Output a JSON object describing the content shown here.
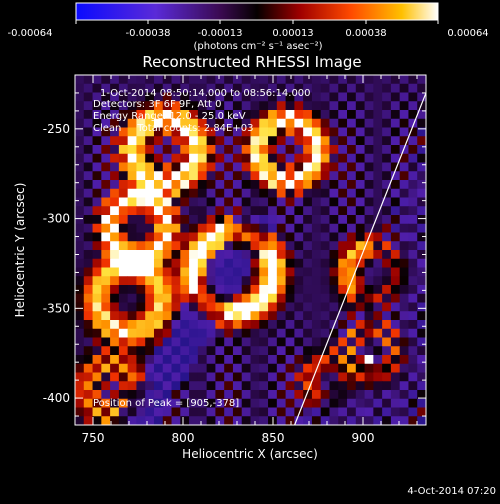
{
  "colorbar": {
    "ticks": [
      "-0.00064",
      "-0.00038",
      "-0.00013",
      "0.00013",
      "0.00038",
      "0.00064"
    ],
    "unit_label": "(photons cm⁻² s⁻¹ asec⁻²)",
    "range": [
      -0.00064,
      0.00064
    ]
  },
  "chart_data": {
    "type": "heatmap",
    "title": "Reconstructed RHESSI Image",
    "xlabel": "Heliocentric X (arcsec)",
    "ylabel": "Heliocentric Y (arcsec)",
    "xlim": [
      740,
      935
    ],
    "ylim": [
      -415,
      -220
    ],
    "xticks": [
      750,
      800,
      850,
      900
    ],
    "yticks": [
      -250,
      -300,
      -350,
      -400
    ],
    "colormap": "blue-purple-black-red-orange-yellow-white",
    "peak_position": [
      905,
      -378
    ],
    "limb_line": [
      [
        862,
        -415
      ],
      [
        935,
        -230
      ]
    ],
    "annotations": [
      "1-Oct-2014 08:50:14.000 to 08:56:14.000",
      "Detectors: 3F 6F 9F, Att 0",
      "Energy Range: 12.0 - 25.0 keV",
      "Clean     Total counts: 2.84E+03"
    ],
    "peak_label": "Position of Peak = [905,-378]"
  },
  "footer": {
    "timestamp": "4-Oct-2014 07:20"
  }
}
